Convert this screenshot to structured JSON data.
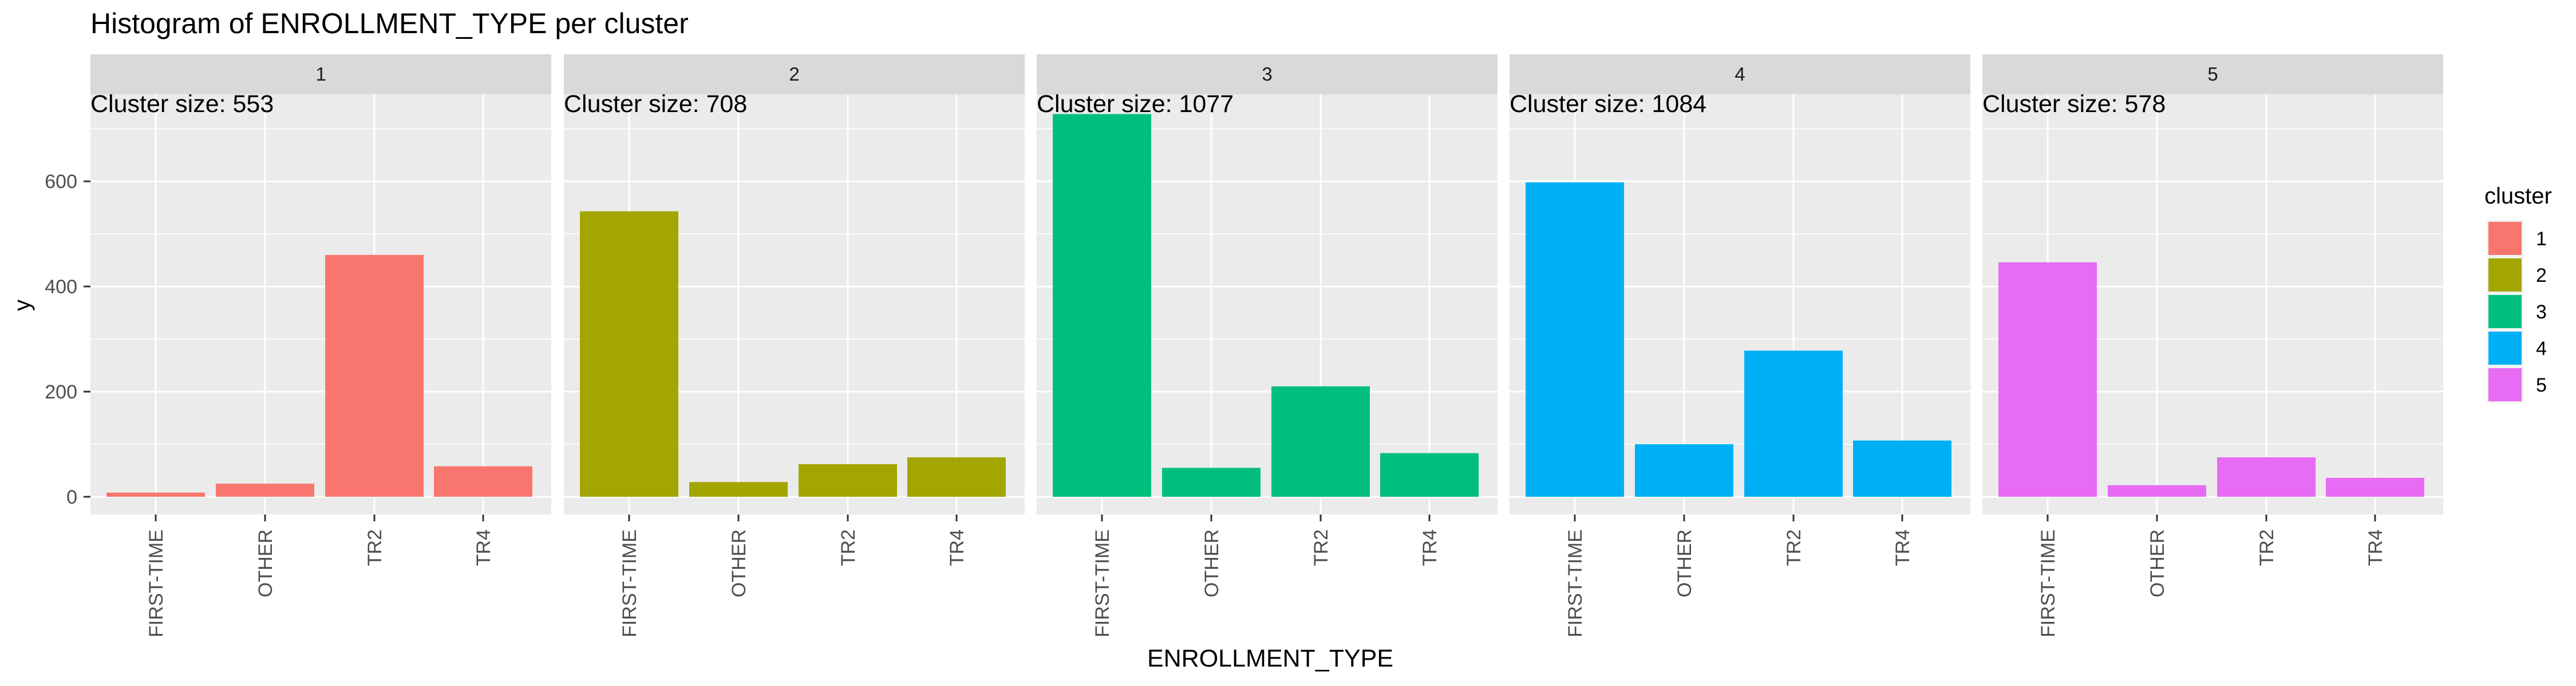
{
  "chart_data": {
    "type": "bar",
    "title": "Histogram of ENROLLMENT_TYPE per cluster",
    "xlabel": "ENROLLMENT_TYPE",
    "ylabel": "y",
    "categories": [
      "FIRST-TIME",
      "OTHER",
      "TR2",
      "TR4"
    ],
    "ylim": [
      0,
      730
    ],
    "yticks": [
      0,
      200,
      400,
      600
    ],
    "grid": true,
    "legend": {
      "title": "cluster",
      "position": "right"
    },
    "panels": [
      {
        "name": "1",
        "size_label": "Cluster size: 553",
        "color": "#F8766D",
        "values": [
          8,
          25,
          460,
          58
        ]
      },
      {
        "name": "2",
        "size_label": "Cluster size: 708",
        "color": "#A3A500",
        "values": [
          543,
          28,
          62,
          75
        ]
      },
      {
        "name": "3",
        "size_label": "Cluster size: 1077",
        "color": "#00BF7D",
        "values": [
          728,
          55,
          210,
          83
        ]
      },
      {
        "name": "4",
        "size_label": "Cluster size: 1084",
        "color": "#00B0F6",
        "values": [
          598,
          100,
          278,
          107
        ]
      },
      {
        "name": "5",
        "size_label": "Cluster size: 578",
        "color": "#E76BF3",
        "values": [
          446,
          22,
          75,
          36
        ]
      }
    ],
    "legend_items": [
      {
        "label": "1",
        "color": "#F8766D"
      },
      {
        "label": "2",
        "color": "#A3A500"
      },
      {
        "label": "3",
        "color": "#00BF7D"
      },
      {
        "label": "4",
        "color": "#00B0F6"
      },
      {
        "label": "5",
        "color": "#E76BF3"
      }
    ]
  }
}
